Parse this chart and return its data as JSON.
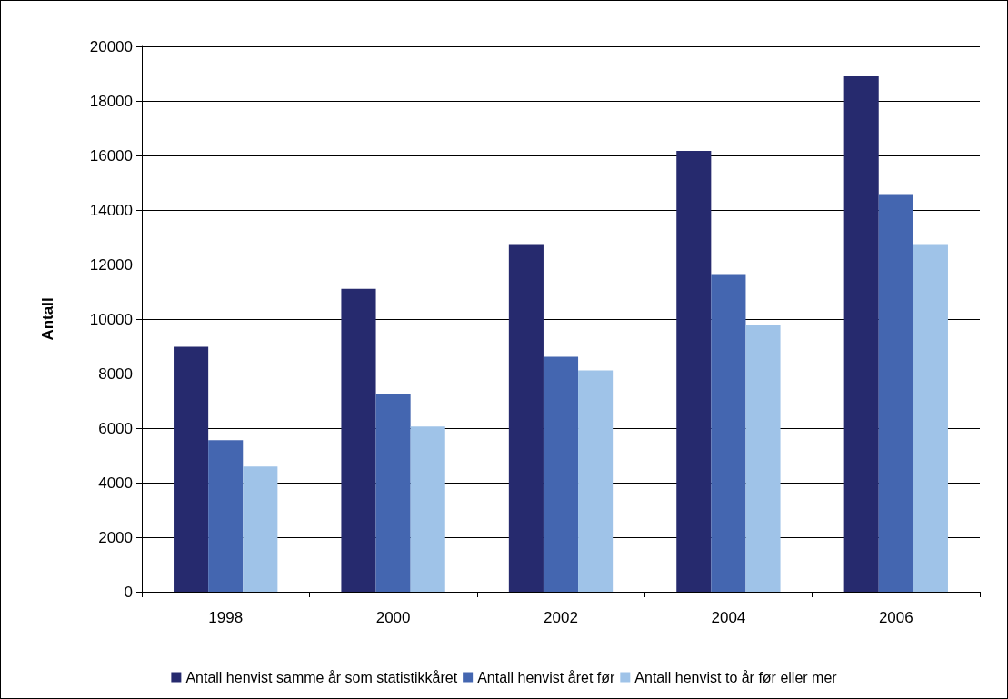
{
  "chart_data": {
    "type": "bar",
    "ylabel": "Antall",
    "categories": [
      "1998",
      "2000",
      "2002",
      "2004",
      "2006"
    ],
    "series": [
      {
        "name": "Antall henvist samme år som statistikkåret",
        "color": "#262a6e",
        "values": [
          8980,
          11110,
          12750,
          16170,
          18900
        ]
      },
      {
        "name": "Antall henvist året før",
        "color": "#4466b0",
        "values": [
          5560,
          7260,
          8620,
          11650,
          14580
        ]
      },
      {
        "name": "Antall henvist to år før eller mer",
        "color": "#9fc3e8",
        "values": [
          4590,
          6060,
          8120,
          9780,
          12750
        ]
      }
    ],
    "ylim": [
      0,
      20000
    ],
    "yticks": [
      0,
      2000,
      4000,
      6000,
      8000,
      10000,
      12000,
      14000,
      16000,
      18000,
      20000
    ],
    "grid": "y",
    "legend": "bottom"
  }
}
